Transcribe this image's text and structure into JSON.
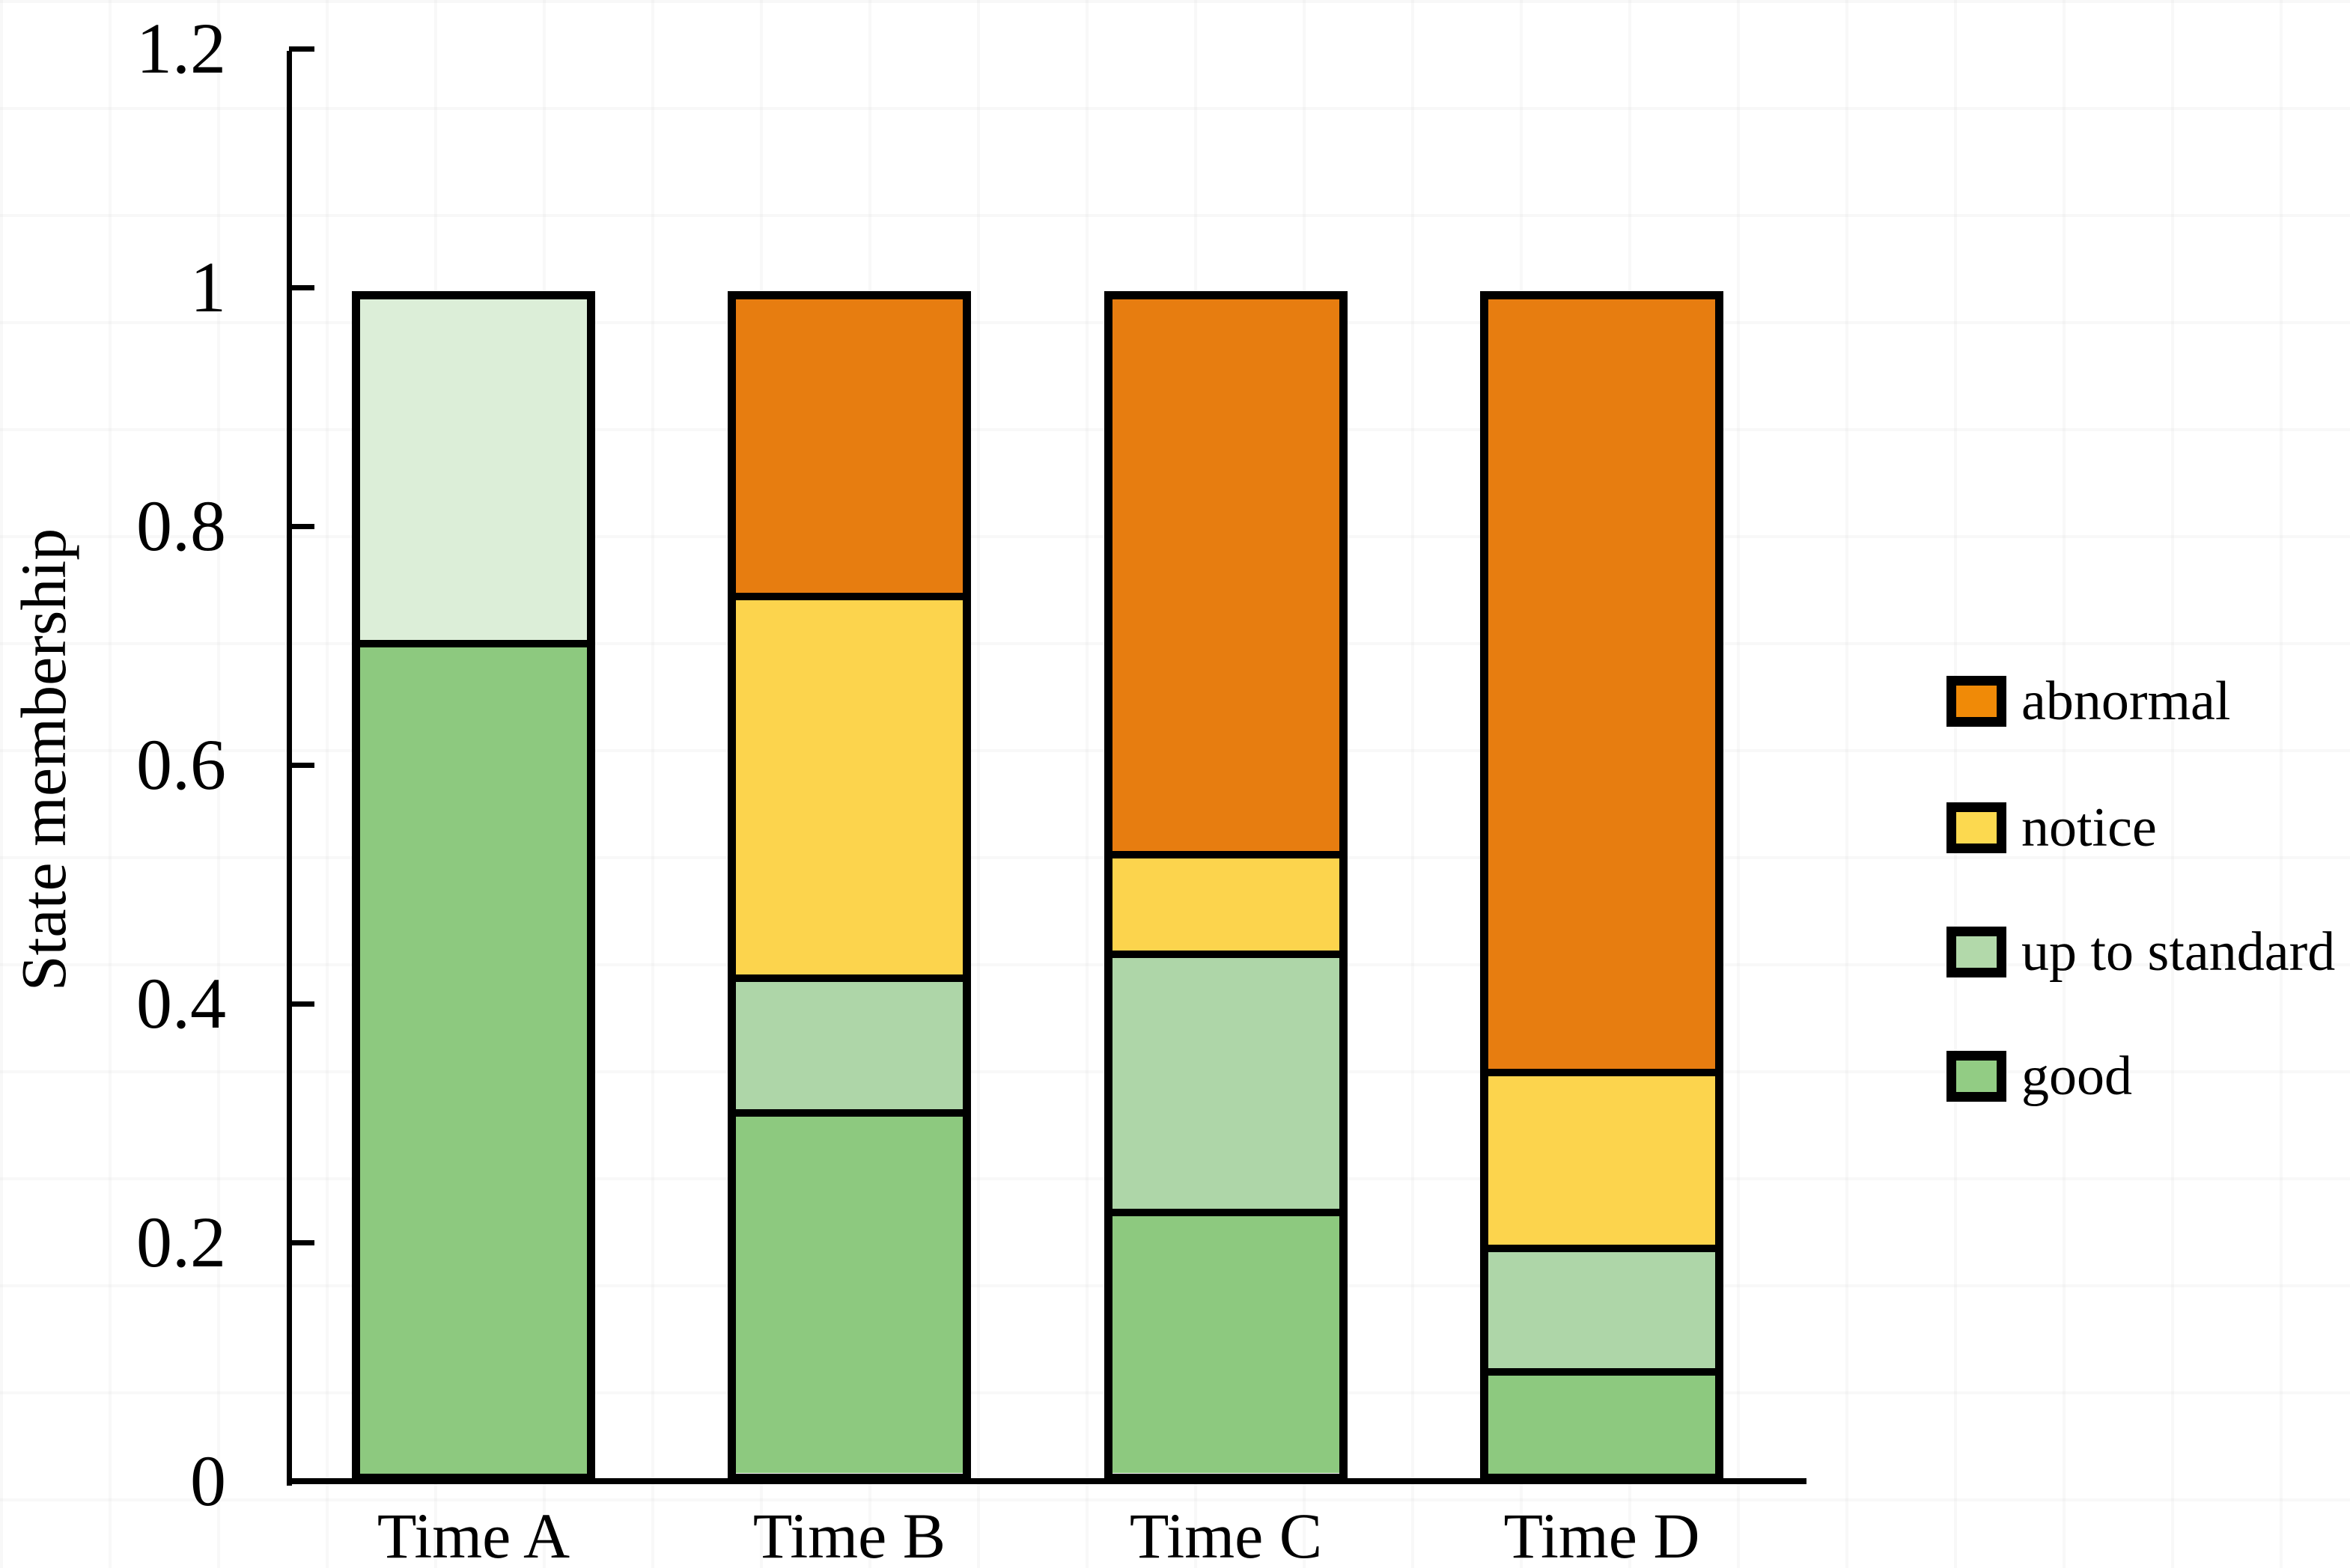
{
  "chart_data": {
    "type": "bar",
    "stacked": true,
    "title": "",
    "ylabel": "State membership",
    "xlabel": "",
    "categories": [
      "Time A",
      "Time B",
      "Time C",
      "Time D"
    ],
    "series": [
      {
        "name": "good",
        "color": "#8dc97f",
        "legend_color": "#92cc84",
        "values": [
          0.71,
          0.31,
          0.225,
          0.09
        ]
      },
      {
        "name": "up to standard",
        "color": "#aed6a8",
        "legend_color": "#b2d9aa",
        "values": [
          0.29,
          0.115,
          0.22,
          0.105
        ],
        "per_bar_colors": {
          "0": "#dceed8"
        }
      },
      {
        "name": "notice",
        "color": "#fcd44d",
        "legend_color": "#fcd94f",
        "values": [
          0,
          0.325,
          0.085,
          0.15
        ]
      },
      {
        "name": "abnormal",
        "color": "#e77d10",
        "legend_color": "#f08a07",
        "values": [
          0,
          0.25,
          0.47,
          0.655
        ]
      }
    ],
    "ylim": [
      0,
      1.2
    ],
    "yticks": [
      {
        "value": 0,
        "label": "0"
      },
      {
        "value": 0.2,
        "label": "0.2"
      },
      {
        "value": 0.4,
        "label": "0.4"
      },
      {
        "value": 0.6,
        "label": "0.6"
      },
      {
        "value": 0.8,
        "label": "0.8"
      },
      {
        "value": 1,
        "label": "1"
      },
      {
        "value": 1.2,
        "label": "1.2"
      }
    ],
    "legend": {
      "position": "right",
      "order_top_to_bottom": [
        "abnormal",
        "notice",
        "up to standard",
        "good"
      ]
    },
    "bar_outline_color": "#000000",
    "background_color": "#ffffff",
    "grid": false
  }
}
